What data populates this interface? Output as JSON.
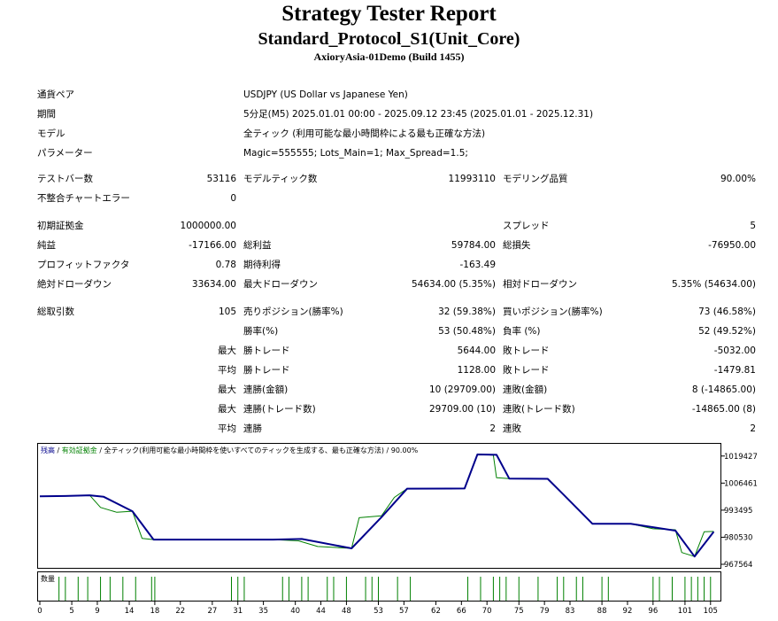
{
  "header": {
    "title": "Strategy Tester Report",
    "subtitle": "Standard_Protocol_S1(Unit_Core)",
    "build": "AxioryAsia-01Demo (Build 1455)"
  },
  "info": [
    {
      "label": "通貨ペア",
      "value": "USDJPY (US Dollar vs Japanese Yen)"
    },
    {
      "label": "期間",
      "value": "5分足(M5) 2025.01.01 00:00 - 2025.09.12 23:45 (2025.01.01 - 2025.12.31)"
    },
    {
      "label": "モデル",
      "value": "全ティック (利用可能な最小時間枠による最も正確な方法)"
    },
    {
      "label": "パラメーター",
      "value": "Magic=555555; Lots_Main=1; Max_Spread=1.5;"
    }
  ],
  "stats": {
    "bars_label": "テストバー数",
    "bars": "53116",
    "ticks_label": "モデルティック数",
    "ticks": "11993110",
    "quality_label": "モデリング品質",
    "quality": "90.00%",
    "mismatch_label": "不整合チャートエラー",
    "mismatch": "0",
    "deposit_label": "初期証拠金",
    "deposit": "1000000.00",
    "spread_label": "スプレッド",
    "spread": "5",
    "net_label": "純益",
    "net": "-17166.00",
    "gross_profit_label": "総利益",
    "gross_profit": "59784.00",
    "gross_loss_label": "総損失",
    "gross_loss": "-76950.00",
    "pf_label": "プロフィットファクタ",
    "pf": "0.78",
    "expected_label": "期待利得",
    "expected": "-163.49",
    "abs_dd_label": "絶対ドローダウン",
    "abs_dd": "33634.00",
    "max_dd_label": "最大ドローダウン",
    "max_dd": "54634.00 (5.35%)",
    "rel_dd_label": "相対ドローダウン",
    "rel_dd": "5.35% (54634.00)",
    "total_trades_label": "総取引数",
    "total_trades": "105",
    "short_label": "売りポジション(勝率%)",
    "short": "32 (59.38%)",
    "long_label": "買いポジション(勝率%)",
    "long": "73 (46.58%)",
    "win_rate_label": "勝率(%)",
    "win_rate": "53 (50.48%)",
    "loss_rate_label": "負率 (%)",
    "loss_rate": "52 (49.52%)",
    "max_label": "最大",
    "avg_label": "平均",
    "win_trade_label": "勝トレード",
    "loss_trade_label": "敗トレード",
    "largest_win": "5644.00",
    "largest_loss": "-5032.00",
    "avg_win": "1128.00",
    "avg_loss": "-1479.81",
    "consec_wins_amt_label": "連勝(金額)",
    "consec_wins_amt": "10 (29709.00)",
    "consec_losses_amt_label": "連敗(金額)",
    "consec_losses_amt": "8 (-14865.00)",
    "consec_wins_cnt_label": "連勝(トレード数)",
    "consec_wins_cnt": "29709.00 (10)",
    "consec_losses_cnt_label": "連敗(トレード数)",
    "consec_losses_cnt": "-14865.00 (8)",
    "avg_consec_wins_label": "連勝",
    "avg_consec_wins": "2",
    "avg_consec_losses_label": "連敗",
    "avg_consec_losses": "2"
  },
  "chart_data": {
    "type": "line",
    "legend": {
      "balance": "残高",
      "sep1": " / ",
      "equity": "有効証拠金",
      "sep2": " / ",
      "model": "全ティック(利用可能な最小時間枠を使いすべてのティックを生成する、最も正確な方法)",
      "quality": " / 90.00%"
    },
    "volume_label": "数量",
    "ylim": [
      967564,
      1024000
    ],
    "yticks": [
      1019427,
      1006461,
      993495,
      980530,
      967564
    ],
    "xlim": [
      0,
      106
    ],
    "xticks": [
      0,
      5,
      9,
      14,
      18,
      22,
      27,
      31,
      35,
      40,
      44,
      48,
      53,
      57,
      62,
      66,
      70,
      75,
      79,
      83,
      88,
      92,
      96,
      101,
      105
    ],
    "colors": {
      "balance": "#00008b",
      "equity": "#008000",
      "volume": "#008000",
      "axis": "#000000"
    },
    "series": [
      {
        "name": "残高",
        "x": [
          0,
          4,
          7.8,
          10,
          14.5,
          17.8,
          36.5,
          41,
          48.8,
          53.5,
          57.5,
          66.5,
          68.5,
          71.5,
          73.5,
          79.5,
          82,
          86.5,
          92.5,
          99.5,
          102.5,
          105.5
        ],
        "y": [
          1000090,
          1000300,
          1000600,
          999900,
          993000,
          979400,
          979400,
          979700,
          975200,
          990200,
          1003800,
          1003900,
          1020200,
          1020000,
          1008600,
          1008500,
          1000900,
          987000,
          987000,
          983700,
          971300,
          983200
        ]
      },
      {
        "name": "有効証拠金",
        "x": [
          0,
          4,
          7.8,
          9.5,
          12,
          14.5,
          16,
          17.8,
          36.5,
          40.5,
          43.5,
          48.8,
          50,
          53.5,
          55.5,
          57.5,
          66.5,
          68.5,
          71,
          71.5,
          73.5,
          79.5,
          81.5,
          82,
          86.5,
          92.5,
          96,
          99.5,
          100.5,
          102.5,
          104,
          105.5
        ],
        "y": [
          1000090,
          1000300,
          1000600,
          994800,
          992500,
          993000,
          980000,
          979400,
          979400,
          978800,
          976100,
          975200,
          989900,
          990800,
          999600,
          1003800,
          1003900,
          1020400,
          1019800,
          1009000,
          1008600,
          1008500,
          1002400,
          1000900,
          987000,
          987000,
          984600,
          984100,
          973200,
          971300,
          983200,
          983300
        ]
      }
    ],
    "volume_x": [
      3,
      4,
      6,
      7.5,
      9.5,
      11,
      13,
      15,
      17.5,
      18,
      30,
      31,
      32,
      38,
      39,
      41,
      42,
      45,
      46,
      48,
      51,
      52,
      53,
      56,
      58,
      67,
      69,
      71,
      72,
      73,
      75,
      78,
      81,
      82,
      84,
      85,
      88,
      89,
      96,
      97,
      99,
      101,
      102,
      103,
      104,
      105
    ]
  }
}
